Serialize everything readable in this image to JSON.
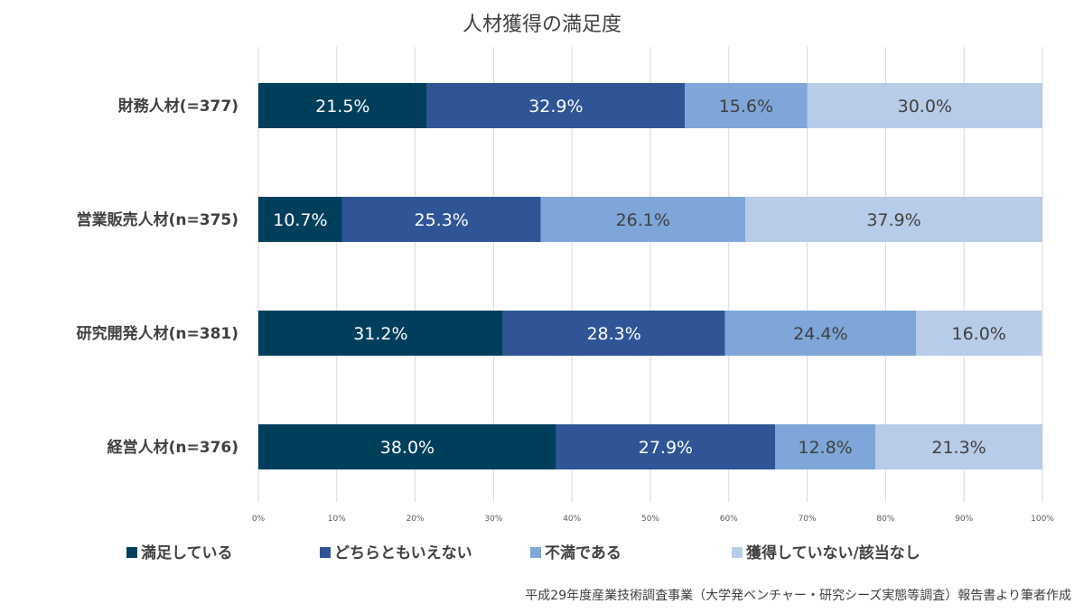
{
  "chart_data": {
    "type": "bar",
    "orientation": "horizontal",
    "stacked": true,
    "title": "人材獲得の満足度",
    "categories": [
      "財務人材(=377)",
      "営業販売人材(n=375)",
      "研究開発人材(n=381)",
      "経営人材(n=376)"
    ],
    "series": [
      {
        "name": "満足している",
        "color": "#003f5c",
        "label_color": "#ffffff",
        "values": [
          21.5,
          10.7,
          31.2,
          38.0
        ]
      },
      {
        "name": "どちらともいえない",
        "color": "#2f5597",
        "label_color": "#ffffff",
        "values": [
          32.9,
          25.3,
          28.3,
          27.9
        ]
      },
      {
        "name": "不満である",
        "color": "#7ea6d8",
        "label_color": "#404040",
        "values": [
          15.6,
          26.1,
          24.4,
          12.8
        ]
      },
      {
        "name": "獲得していない/該当なし",
        "color": "#b7cce8",
        "label_color": "#404040",
        "values": [
          30.0,
          37.9,
          16.0,
          21.3
        ]
      }
    ],
    "xlim": [
      0,
      100
    ],
    "x_ticks": [
      0,
      10,
      20,
      30,
      40,
      50,
      60,
      70,
      80,
      90,
      100
    ],
    "x_tick_labels": [
      "0%",
      "10%",
      "20%",
      "30%",
      "40%",
      "50%",
      "60%",
      "70%",
      "80%",
      "90%",
      "100%"
    ],
    "value_unit": "%",
    "grid": true,
    "legend_position": "bottom"
  },
  "source_note": "平成29年度産業技術調査事業（大学発ベンチャー・研究シーズ実態等調査）報告書より筆者作成"
}
